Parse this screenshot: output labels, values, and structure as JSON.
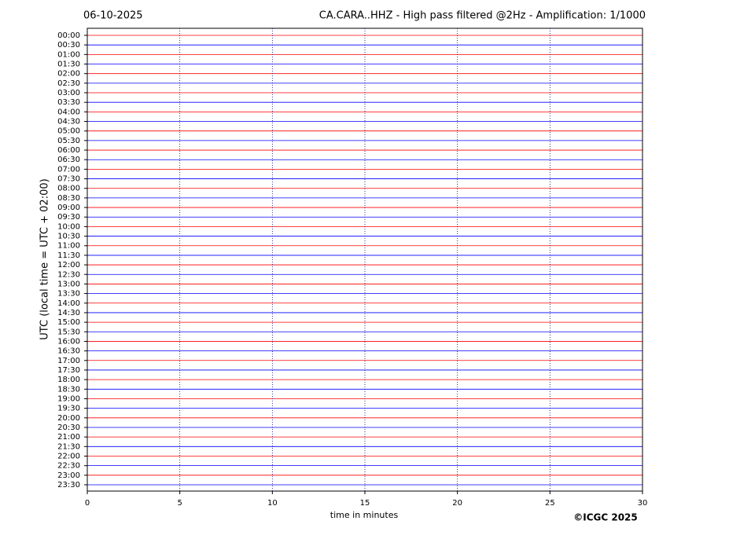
{
  "chart_data": {
    "type": "helicorder",
    "date": "06-10-2025",
    "title": "CA.CARA..HHZ - High pass filtered @2Hz - Amplification: 1/1000",
    "ylabel": "UTC (local time = UTC + 02:00)",
    "xlabel": "time in minutes",
    "copyright": "©ICGC 2025",
    "categories": [
      "00:00",
      "00:30",
      "01:00",
      "01:30",
      "02:00",
      "02:30",
      "03:00",
      "03:30",
      "04:00",
      "04:30",
      "05:00",
      "05:30",
      "06:00",
      "06:30",
      "07:00",
      "07:30",
      "08:00",
      "08:30",
      "09:00",
      "09:30",
      "10:00",
      "10:30",
      "11:00",
      "11:30",
      "12:00",
      "12:30",
      "13:00",
      "13:30",
      "14:00",
      "14:30",
      "15:00",
      "15:30",
      "16:00",
      "16:30",
      "17:00",
      "17:30",
      "18:00",
      "18:30",
      "19:00",
      "19:30",
      "20:00",
      "20:30",
      "21:00",
      "21:30",
      "22:00",
      "22:30",
      "23:00",
      "23:30"
    ],
    "colors": [
      "#ff0000",
      "#0000ff"
    ],
    "xlim": [
      0,
      30
    ],
    "xticks": [
      0,
      5,
      10,
      15,
      20,
      25,
      30
    ],
    "grid": true
  }
}
